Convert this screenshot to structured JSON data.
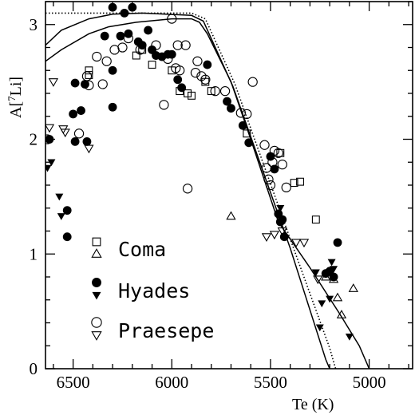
{
  "chart_data": {
    "type": "scatter",
    "xlabel": "Te (K)",
    "ylabel": "A[",
    "ylabel_sup": "7",
    "ylabel_tail": "Li]",
    "xlim": [
      6640,
      4780
    ],
    "ylim": [
      0,
      3.2
    ],
    "x_reversed": true,
    "grid": false,
    "legend_position": "bottom-left",
    "xticks": [
      6500,
      6000,
      5500,
      5000
    ],
    "xtick_labels": [
      "6500",
      "6000",
      "5500",
      "5000"
    ],
    "yticks": [
      0,
      1,
      2,
      3
    ],
    "ytick_labels": [
      "0",
      "1",
      "2",
      "3"
    ],
    "legend": [
      {
        "label": "Coma",
        "markers": [
          "open-square",
          "open-triangle-up"
        ]
      },
      {
        "label": "Hyades",
        "markers": [
          "filled-circle",
          "filled-triangle-down"
        ]
      },
      {
        "label": "Praesepe",
        "markers": [
          "open-circle",
          "open-triangle-down"
        ]
      }
    ],
    "series": [
      {
        "name": "Coma",
        "marker": "open-square",
        "points": [
          [
            6420,
            2.56
          ],
          [
            6420,
            2.6
          ],
          [
            6180,
            2.73
          ],
          [
            6150,
            2.78
          ],
          [
            6100,
            2.65
          ],
          [
            6000,
            2.6
          ],
          [
            5960,
            2.42
          ],
          [
            5920,
            2.4
          ],
          [
            5900,
            2.38
          ],
          [
            5830,
            2.5
          ],
          [
            5800,
            2.42
          ],
          [
            5620,
            2.05
          ],
          [
            5450,
            1.88
          ],
          [
            5380,
            1.62
          ],
          [
            5350,
            1.63
          ],
          [
            5270,
            1.3
          ]
        ]
      },
      {
        "name": "Coma",
        "marker": "open-triangle-up",
        "points": [
          [
            5700,
            1.33
          ],
          [
            5220,
            0.8
          ],
          [
            5180,
            0.78
          ],
          [
            5160,
            0.62
          ],
          [
            5140,
            0.47
          ],
          [
            5080,
            0.7
          ]
        ]
      },
      {
        "name": "Hyades",
        "marker": "filled-circle",
        "points": [
          [
            6620,
            2.0
          ],
          [
            6530,
            1.38
          ],
          [
            6530,
            1.15
          ],
          [
            6500,
            2.22
          ],
          [
            6490,
            2.49
          ],
          [
            6490,
            1.98
          ],
          [
            6460,
            2.25
          ],
          [
            6440,
            2.48
          ],
          [
            6430,
            1.98
          ],
          [
            6340,
            2.9
          ],
          [
            6300,
            2.6
          ],
          [
            6300,
            2.28
          ],
          [
            6300,
            3.15
          ],
          [
            6260,
            2.9
          ],
          [
            6240,
            3.1
          ],
          [
            6220,
            2.92
          ],
          [
            6200,
            3.15
          ],
          [
            6170,
            2.85
          ],
          [
            6150,
            2.82
          ],
          [
            6120,
            2.95
          ],
          [
            6100,
            2.78
          ],
          [
            6080,
            2.73
          ],
          [
            6050,
            2.72
          ],
          [
            6020,
            2.74
          ],
          [
            6000,
            2.74
          ],
          [
            5970,
            2.52
          ],
          [
            5950,
            2.45
          ],
          [
            5820,
            2.65
          ],
          [
            5720,
            2.33
          ],
          [
            5700,
            2.27
          ],
          [
            5640,
            2.12
          ],
          [
            5610,
            1.97
          ],
          [
            5500,
            1.85
          ],
          [
            5480,
            1.74
          ],
          [
            5460,
            1.35
          ],
          [
            5450,
            1.28
          ],
          [
            5440,
            1.3
          ],
          [
            5430,
            1.15
          ],
          [
            5220,
            0.83
          ],
          [
            5200,
            0.85
          ],
          [
            5180,
            0.8
          ],
          [
            5160,
            1.1
          ]
        ]
      },
      {
        "name": "Hyades",
        "marker": "filled-triangle-down",
        "points": [
          [
            6630,
            1.75
          ],
          [
            6610,
            1.8
          ],
          [
            6570,
            1.5
          ],
          [
            6560,
            1.33
          ],
          [
            5450,
            1.4
          ],
          [
            5270,
            0.84
          ],
          [
            5250,
            0.36
          ],
          [
            5240,
            0.57
          ],
          [
            5200,
            0.61
          ],
          [
            5190,
            0.93
          ],
          [
            5180,
            0.87
          ],
          [
            5100,
            0.28
          ]
        ]
      },
      {
        "name": "Praesepe",
        "marker": "open-circle",
        "points": [
          [
            6630,
            2.0
          ],
          [
            6470,
            2.05
          ],
          [
            6430,
            2.55
          ],
          [
            6420,
            2.47
          ],
          [
            6380,
            2.72
          ],
          [
            6350,
            2.48
          ],
          [
            6330,
            2.68
          ],
          [
            6290,
            2.78
          ],
          [
            6250,
            2.8
          ],
          [
            6220,
            2.88
          ],
          [
            6160,
            2.78
          ],
          [
            6080,
            2.82
          ],
          [
            6040,
            2.3
          ],
          [
            6020,
            2.7
          ],
          [
            6000,
            3.05
          ],
          [
            5980,
            2.62
          ],
          [
            5970,
            2.82
          ],
          [
            5960,
            2.6
          ],
          [
            5930,
            2.82
          ],
          [
            5920,
            1.57
          ],
          [
            5880,
            2.58
          ],
          [
            5870,
            2.68
          ],
          [
            5850,
            2.55
          ],
          [
            5830,
            2.52
          ],
          [
            5780,
            2.42
          ],
          [
            5730,
            2.42
          ],
          [
            5650,
            2.23
          ],
          [
            5620,
            2.22
          ],
          [
            5590,
            2.5
          ],
          [
            5530,
            1.95
          ],
          [
            5520,
            1.75
          ],
          [
            5510,
            1.65
          ],
          [
            5500,
            1.6
          ],
          [
            5490,
            1.8
          ],
          [
            5480,
            1.9
          ],
          [
            5460,
            1.88
          ],
          [
            5440,
            1.78
          ],
          [
            5420,
            1.58
          ]
        ]
      },
      {
        "name": "Praesepe",
        "marker": "open-triangle-down",
        "points": [
          [
            6620,
            2.1
          ],
          [
            6600,
            2.5
          ],
          [
            6550,
            2.09
          ],
          [
            6540,
            2.06
          ],
          [
            6420,
            1.92
          ],
          [
            5520,
            1.15
          ],
          [
            5480,
            1.17
          ],
          [
            5440,
            1.2
          ],
          [
            5370,
            1.1
          ],
          [
            5330,
            1.1
          ],
          [
            5260,
            0.78
          ]
        ]
      }
    ],
    "lines": [
      {
        "style": "dotted",
        "points": [
          [
            6640,
            3.1
          ],
          [
            5900,
            3.1
          ],
          [
            5830,
            3.05
          ],
          [
            5680,
            2.48
          ],
          [
            5400,
            1.13
          ],
          [
            5200,
            0.18
          ],
          [
            5170,
            0
          ]
        ]
      },
      {
        "style": "solid",
        "points": [
          [
            6640,
            2.82
          ],
          [
            6560,
            2.95
          ],
          [
            6420,
            3.05
          ],
          [
            6300,
            3.09
          ],
          [
            6150,
            3.1
          ],
          [
            5900,
            3.08
          ],
          [
            5840,
            3.03
          ],
          [
            5690,
            2.46
          ],
          [
            5400,
            1.05
          ],
          [
            5220,
            0.08
          ],
          [
            5200,
            0
          ]
        ]
      },
      {
        "style": "solid",
        "points": [
          [
            6640,
            2.68
          ],
          [
            6560,
            2.78
          ],
          [
            6420,
            2.92
          ],
          [
            6320,
            2.98
          ],
          [
            6180,
            3.02
          ],
          [
            6000,
            3.05
          ],
          [
            5900,
            3.05
          ],
          [
            5860,
            3.02
          ],
          [
            5820,
            2.92
          ],
          [
            5700,
            2.5
          ],
          [
            5600,
            2.0
          ],
          [
            5460,
            1.28
          ],
          [
            5300,
            0.88
          ],
          [
            5150,
            0.48
          ],
          [
            5050,
            0.2
          ],
          [
            5000,
            0
          ]
        ]
      }
    ]
  }
}
